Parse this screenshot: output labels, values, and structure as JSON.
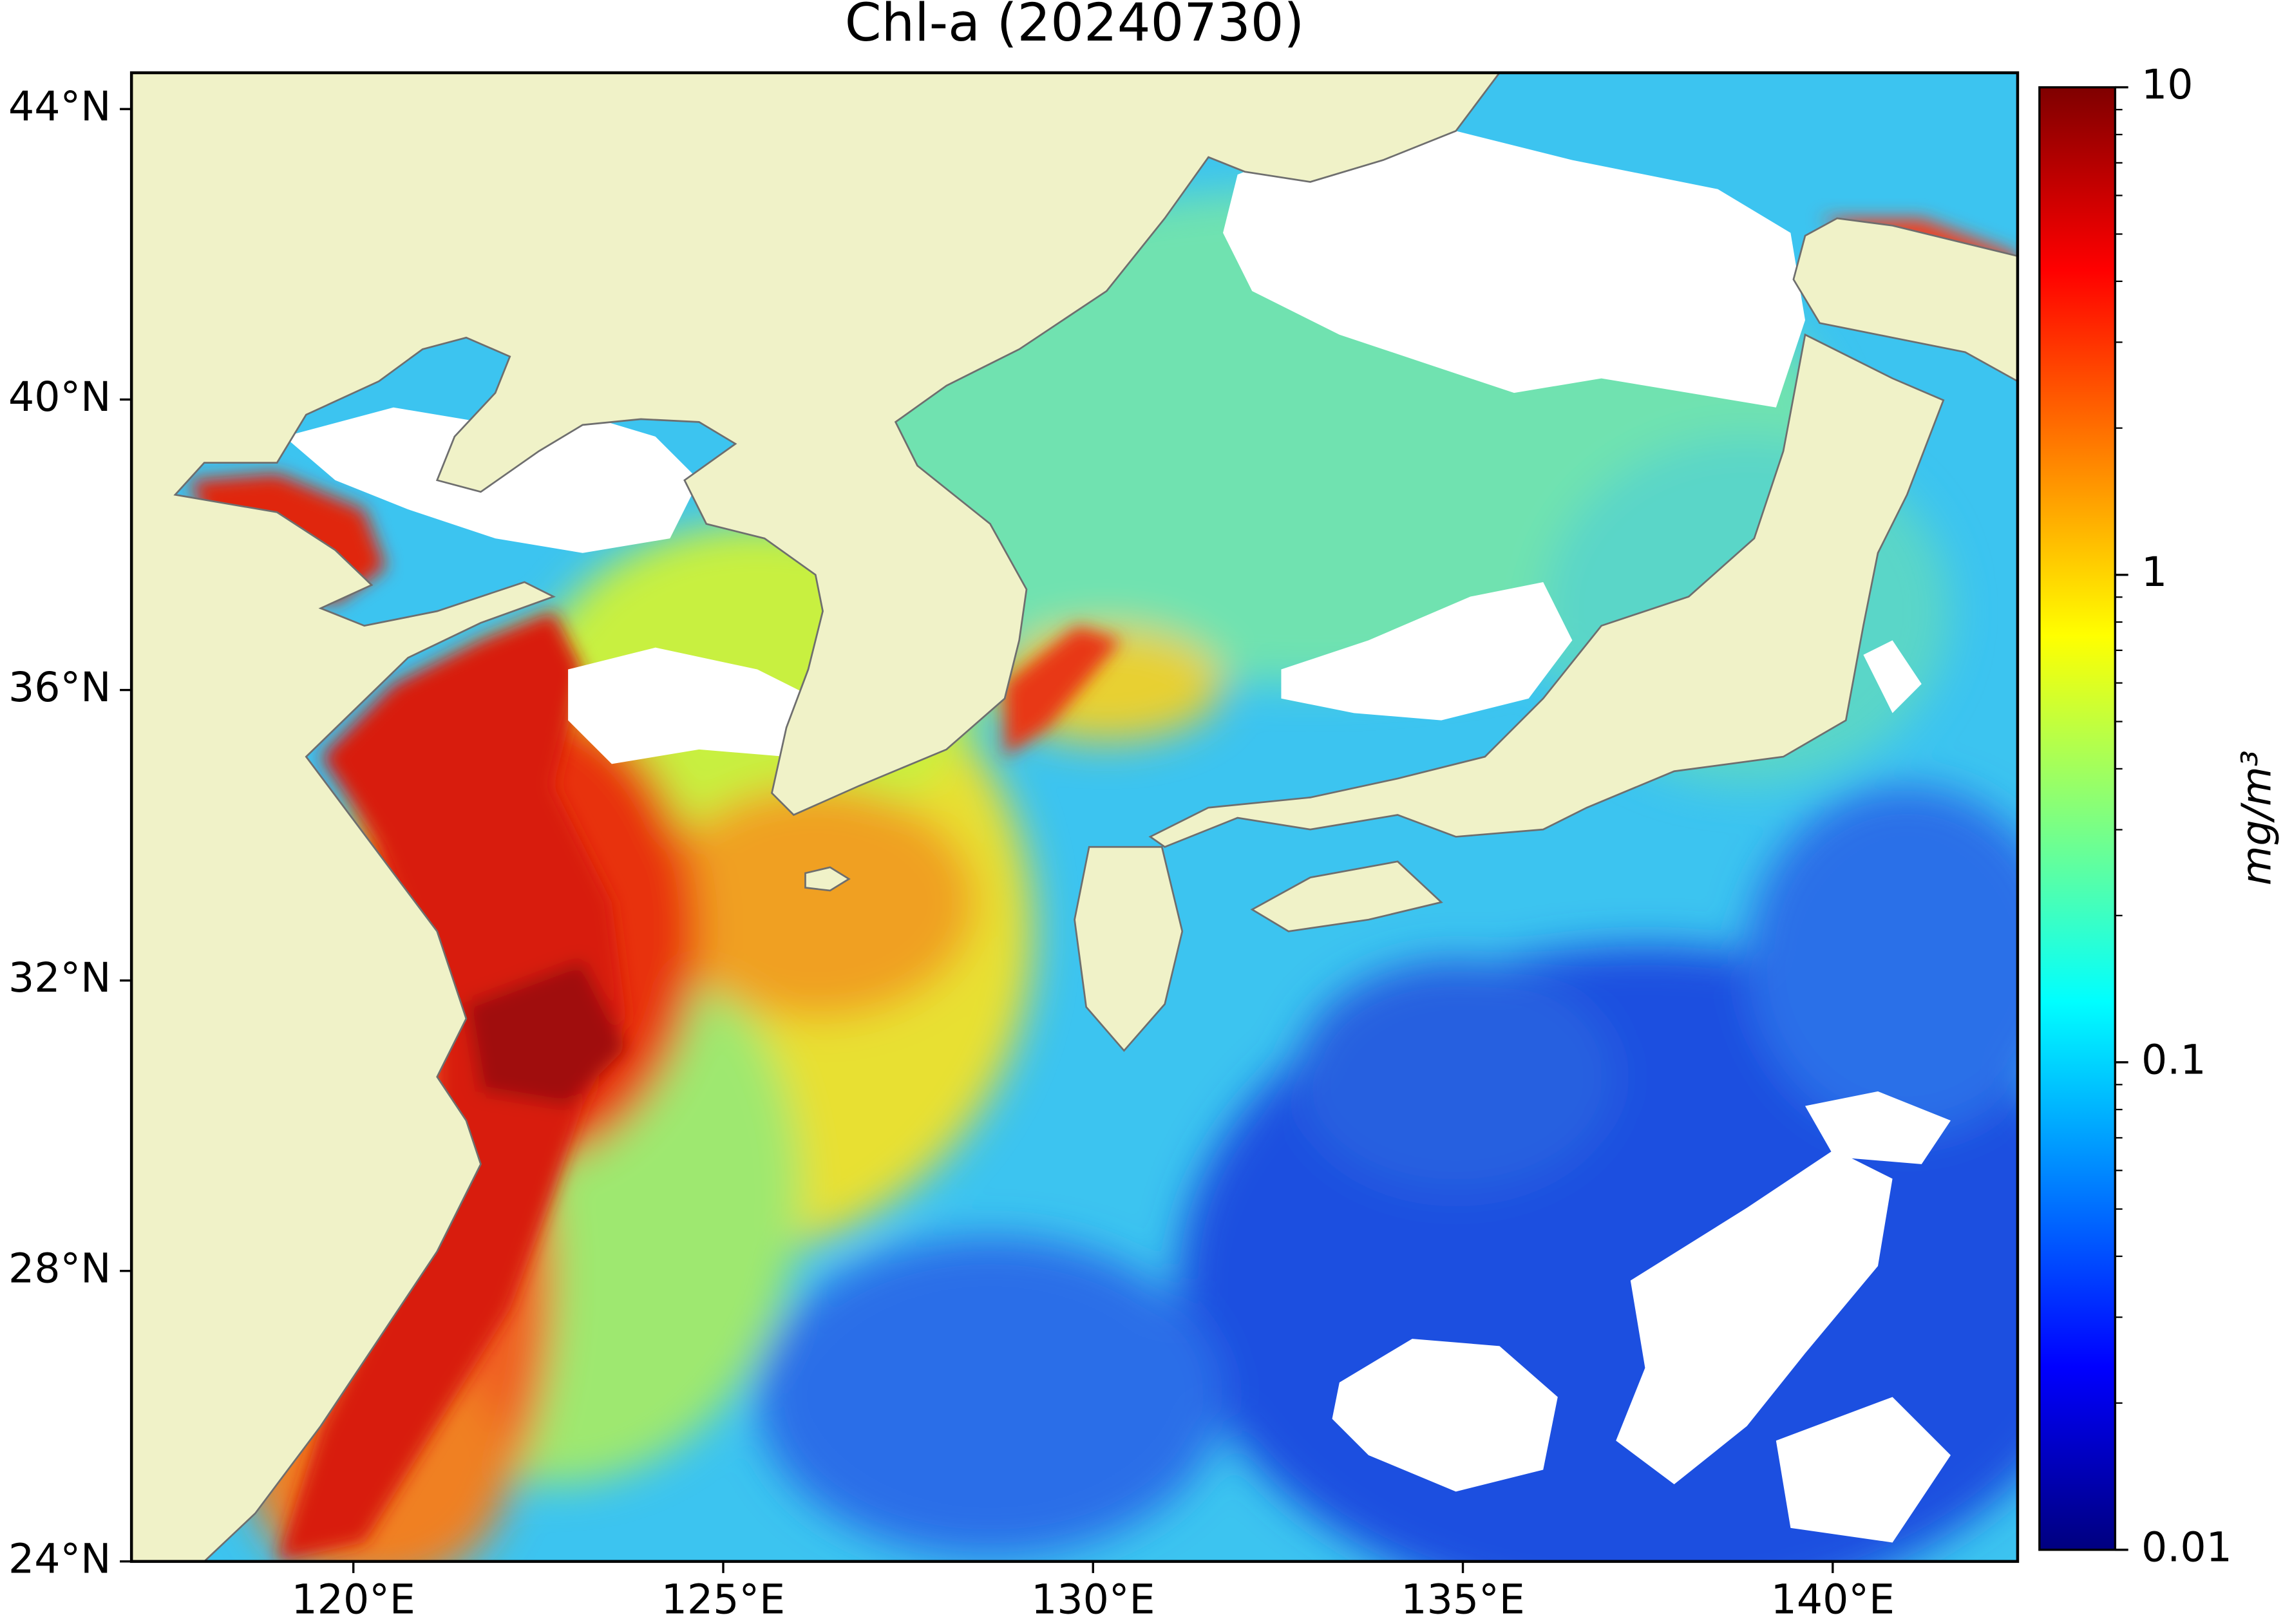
{
  "title": "Chl-a (20240730)",
  "map": {
    "xlim": [
      117,
      142.5
    ],
    "ylim": [
      24,
      44.5
    ],
    "xticks": [
      {
        "value": 120,
        "label": "120°E"
      },
      {
        "value": 125,
        "label": "125°E"
      },
      {
        "value": 130,
        "label": "130°E"
      },
      {
        "value": 135,
        "label": "135°E"
      },
      {
        "value": 140,
        "label": "140°E"
      }
    ],
    "yticks": [
      {
        "value": 24,
        "label": "24°N"
      },
      {
        "value": 28,
        "label": "28°N"
      },
      {
        "value": 32,
        "label": "32°N"
      },
      {
        "value": 36,
        "label": "36°N"
      },
      {
        "value": 40,
        "label": "40°N"
      },
      {
        "value": 44,
        "label": "44°N"
      }
    ]
  },
  "colorbar": {
    "label": "mg/m³",
    "scale": "log",
    "colormap": "jet",
    "lim": [
      0.01,
      10
    ],
    "ticks": [
      0.01,
      0.1,
      1,
      10
    ]
  }
}
